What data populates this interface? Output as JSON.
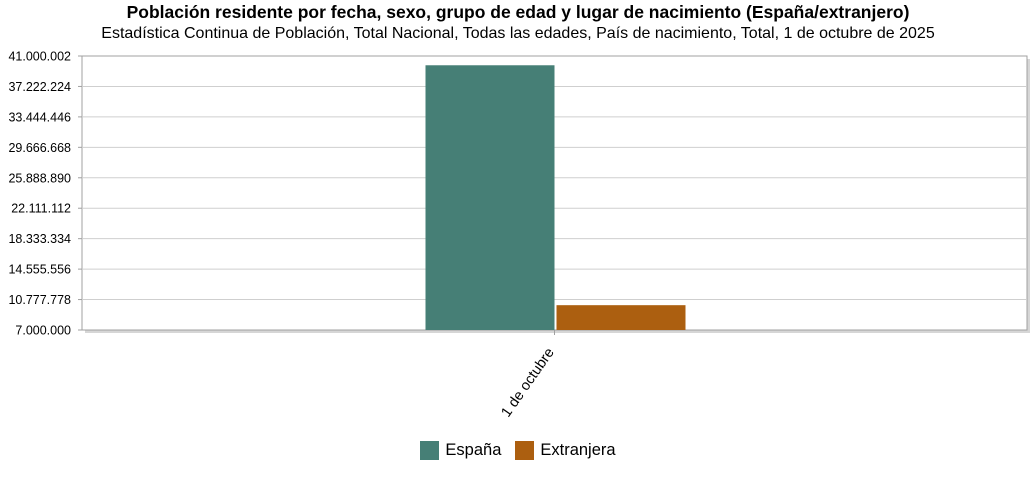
{
  "title": "Población residente por fecha, sexo, grupo de edad y lugar de nacimiento (España/extranjero)",
  "subtitle": "Estadística Continua de Población, Total Nacional, Todas las edades, País de nacimiento, Total, 1 de octubre de 2025",
  "chart_data": {
    "type": "bar",
    "title": "Población residente por fecha, sexo, grupo de edad y lugar de nacimiento (España/extranjero)",
    "subtitle": "Estadística Continua de Población, Total Nacional, Todas las edades, País de nacimiento, Total, 1 de octubre de 2025",
    "categories": [
      "1 de octubre"
    ],
    "series": [
      {
        "name": "España",
        "color": "#467f76",
        "values": [
          39850000
        ]
      },
      {
        "name": "Extranjera",
        "color": "#ac5f10",
        "values": [
          10080000
        ]
      }
    ],
    "ylim": [
      7000000,
      41000002
    ],
    "yticks": [
      "7.000.000",
      "10.777.778",
      "14.555.556",
      "18.333.334",
      "22.111.112",
      "25.888.890",
      "29.666.668",
      "33.444.446",
      "37.222.224",
      "41.000.002"
    ],
    "grid": true,
    "legend": "bottom"
  }
}
